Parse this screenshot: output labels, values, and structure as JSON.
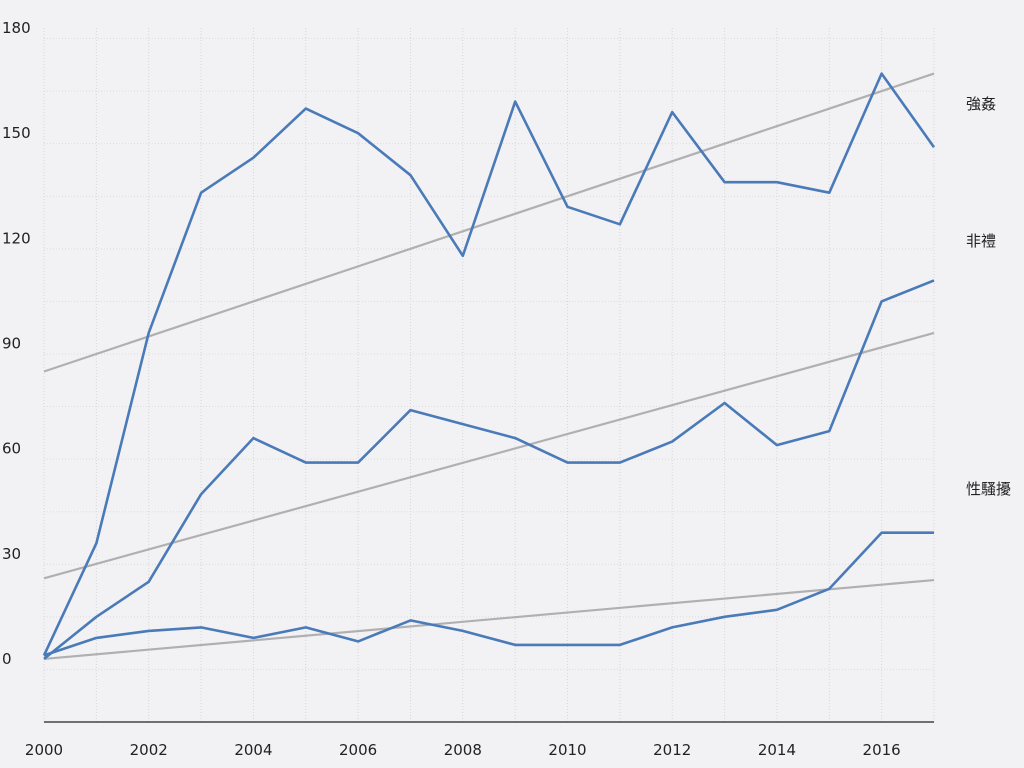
{
  "chart_data": {
    "type": "line",
    "title": "",
    "xlabel": "",
    "ylabel": "",
    "xlim": [
      2000,
      2017
    ],
    "ylim": [
      -18,
      180
    ],
    "x_ticks": [
      2000,
      2002,
      2004,
      2006,
      2008,
      2010,
      2012,
      2014,
      2016
    ],
    "y_ticks": [
      0,
      30,
      60,
      90,
      120,
      150,
      180
    ],
    "grid": true,
    "line_color": "#4a7ab8",
    "trend_color": "#a9a9a9",
    "background_color": "#f2f2f5",
    "x": [
      2000,
      2001,
      2002,
      2003,
      2004,
      2005,
      2006,
      2007,
      2008,
      2009,
      2010,
      2011,
      2012,
      2013,
      2014,
      2015,
      2016,
      2017
    ],
    "series": [
      {
        "name": "強姦",
        "values": [
          1,
          33,
          93,
          133,
          143,
          157,
          150,
          138,
          115,
          159,
          129,
          124,
          156,
          136,
          136,
          133,
          167,
          146
        ],
        "trend": [
          82,
          167
        ]
      },
      {
        "name": "非禮",
        "values": [
          0,
          12,
          22,
          47,
          63,
          56,
          56,
          71,
          67,
          63,
          56,
          56,
          62,
          73,
          61,
          65,
          102,
          108
        ],
        "trend": [
          23,
          93
        ]
      },
      {
        "name": "性騷擾",
        "values": [
          1,
          6,
          8,
          9,
          6,
          9,
          5,
          11,
          8,
          4,
          4,
          4,
          9,
          12,
          14,
          20,
          36,
          36
        ],
        "trend": [
          0,
          22.5
        ]
      }
    ]
  }
}
